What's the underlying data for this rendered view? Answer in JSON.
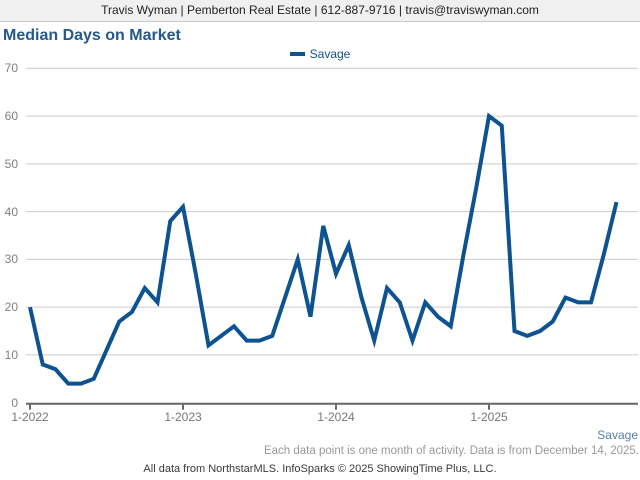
{
  "header": {
    "text": "Travis Wyman | Pemberton Real Estate | 612-887-9716 | travis@traviswyman.com"
  },
  "title": "Median Days on Market",
  "legend": {
    "label": "Savage"
  },
  "footer": {
    "series_label": "Savage",
    "note1": "Each data point is one month of activity. Data is from December 14, 2025.",
    "note2": "All data from NorthstarMLS. InfoSparks © 2025 ShowingTime Plus, LLC."
  },
  "colors": {
    "line": "#0d5291",
    "title_text": "#23598c",
    "legend_text": "#14508c",
    "series_label_text": "#5580ad",
    "gridline": "#cccccc",
    "axis": "#666666",
    "tick_label": "#808080",
    "header_bg": "#f0f0f0"
  },
  "chart_data": {
    "type": "line",
    "title": "Median Days on Market",
    "xlabel": "",
    "ylabel": "",
    "ylim": [
      0,
      70
    ],
    "y_ticks": [
      0,
      10,
      20,
      30,
      40,
      50,
      60,
      70
    ],
    "x_tick_labels": [
      "1-2022",
      "1-2023",
      "1-2024",
      "1-2025"
    ],
    "grid": "horizontal",
    "legend_position": "top-center",
    "x": [
      "1-2022",
      "2-2022",
      "3-2022",
      "4-2022",
      "5-2022",
      "6-2022",
      "7-2022",
      "8-2022",
      "9-2022",
      "10-2022",
      "11-2022",
      "12-2022",
      "1-2023",
      "2-2023",
      "3-2023",
      "4-2023",
      "5-2023",
      "6-2023",
      "7-2023",
      "8-2023",
      "9-2023",
      "10-2023",
      "11-2023",
      "12-2023",
      "1-2024",
      "2-2024",
      "3-2024",
      "4-2024",
      "5-2024",
      "6-2024",
      "7-2024",
      "8-2024",
      "9-2024",
      "10-2024",
      "11-2024",
      "12-2024",
      "1-2025",
      "2-2025",
      "3-2025",
      "4-2025",
      "5-2025",
      "6-2025",
      "7-2025",
      "8-2025",
      "9-2025",
      "10-2025",
      "11-2025"
    ],
    "series": [
      {
        "name": "Savage",
        "color": "#0d5291",
        "values": [
          20,
          8,
          7,
          4,
          4,
          5,
          11,
          17,
          19,
          24,
          21,
          38,
          41,
          27,
          12,
          14,
          16,
          13,
          13,
          14,
          22,
          30,
          18,
          37,
          27,
          33,
          22,
          13,
          24,
          21,
          13,
          21,
          18,
          16,
          31,
          45,
          60,
          58,
          15,
          14,
          15,
          17,
          22,
          21,
          21,
          31,
          42
        ]
      }
    ]
  }
}
